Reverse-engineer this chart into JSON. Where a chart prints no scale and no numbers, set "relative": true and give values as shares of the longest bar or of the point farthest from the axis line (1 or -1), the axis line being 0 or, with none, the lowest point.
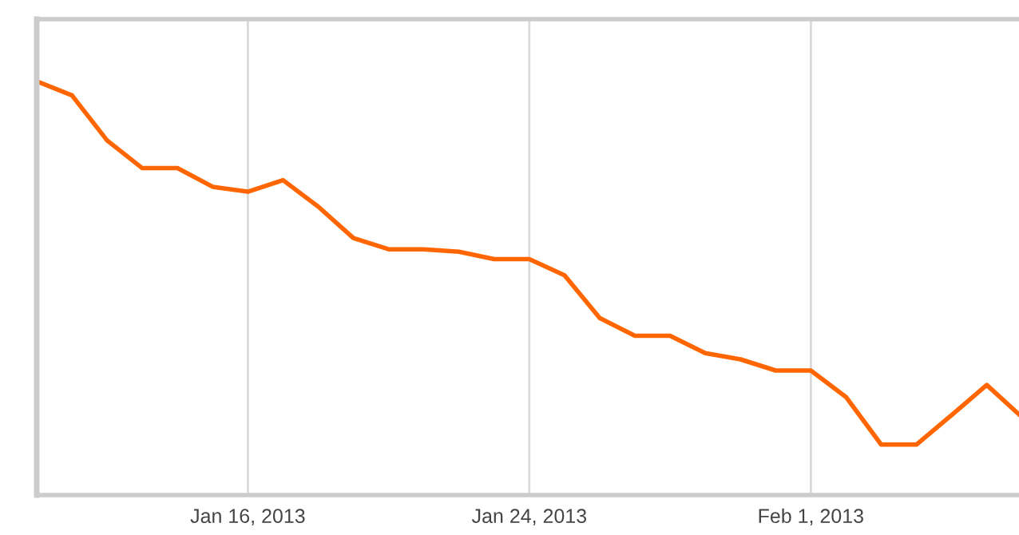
{
  "chart_data": {
    "type": "line",
    "relative": true,
    "grid": "x",
    "marker": "none",
    "line_style": "solid",
    "x": [
      "2013-01-10",
      "2013-01-11",
      "2013-01-12",
      "2013-01-13",
      "2013-01-14",
      "2013-01-15",
      "2013-01-16",
      "2013-01-17",
      "2013-01-18",
      "2013-01-19",
      "2013-01-20",
      "2013-01-21",
      "2013-01-22",
      "2013-01-23",
      "2013-01-24",
      "2013-01-25",
      "2013-01-26",
      "2013-01-27",
      "2013-01-28",
      "2013-01-29",
      "2013-01-30",
      "2013-01-31",
      "2013-02-01",
      "2013-02-02",
      "2013-02-03",
      "2013-02-04",
      "2013-02-05",
      "2013-02-06",
      "2013-02-06T22:00"
    ],
    "xlim": [
      "2013-01-10",
      "2013-02-06T22:00"
    ],
    "xticks": [
      {
        "value": "2013-01-16",
        "label": "Jan 16, 2013"
      },
      {
        "value": "2013-01-24",
        "label": "Jan 24, 2013"
      },
      {
        "value": "2013-02-01",
        "label": "Feb 1, 2013"
      }
    ],
    "series": [
      {
        "color": "#ff6600",
        "values": [
          1.0,
          0.966,
          0.857,
          0.79,
          0.79,
          0.745,
          0.733,
          0.761,
          0.697,
          0.621,
          0.594,
          0.594,
          0.588,
          0.57,
          0.57,
          0.531,
          0.428,
          0.385,
          0.385,
          0.343,
          0.328,
          0.301,
          0.301,
          0.237,
          0.122,
          0.122,
          0.193,
          0.266,
          0.195
        ]
      }
    ]
  }
}
